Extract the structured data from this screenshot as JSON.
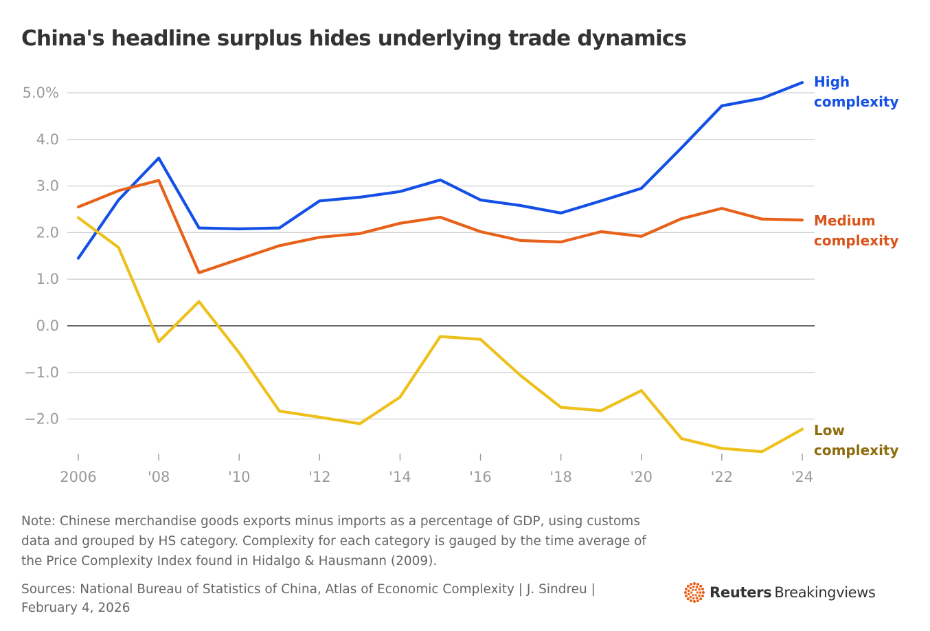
{
  "title": "China's headline surplus hides underlying trade dynamics",
  "chart_data": {
    "type": "line",
    "title": "China's headline surplus hides underlying trade dynamics",
    "x": [
      2006,
      2007,
      2008,
      2009,
      2010,
      2011,
      2012,
      2013,
      2014,
      2015,
      2016,
      2017,
      2018,
      2019,
      2020,
      2021,
      2022,
      2023,
      2024
    ],
    "x_tick_values": [
      2006,
      2008,
      2010,
      2012,
      2014,
      2016,
      2018,
      2020,
      2022,
      2024
    ],
    "x_tick_labels": [
      "2006",
      "'08",
      "'10",
      "'12",
      "'14",
      "'16",
      "'18",
      "'20",
      "'22",
      "'24"
    ],
    "y_tick_values": [
      5,
      4,
      3,
      2,
      1,
      0,
      -1,
      -2
    ],
    "y_tick_labels": [
      "5.0%",
      "4.0",
      "3.0",
      "2.0",
      "1.0",
      "0.0",
      "−1.0",
      "−2.0"
    ],
    "ylim": [
      -2.7,
      5.3
    ],
    "xlim": [
      2006,
      2024
    ],
    "grid": true,
    "zero_line": true,
    "series": [
      {
        "name": "High complexity",
        "label_lines": [
          "High",
          "complexity"
        ],
        "color": "#1450e6",
        "label_color": "#1450e6",
        "values": [
          1.45,
          2.7,
          3.6,
          2.1,
          2.08,
          2.1,
          2.68,
          2.76,
          2.88,
          3.13,
          2.7,
          2.58,
          2.42,
          2.68,
          2.95,
          3.82,
          4.72,
          4.88,
          5.22
        ]
      },
      {
        "name": "Medium complexity",
        "label_lines": [
          "Medium",
          "complexity"
        ],
        "color": "#e8611a",
        "label_color": "#d9541a",
        "values": [
          2.55,
          2.9,
          3.12,
          1.14,
          1.43,
          1.72,
          1.9,
          1.98,
          2.2,
          2.33,
          2.02,
          1.83,
          1.8,
          2.02,
          1.92,
          2.3,
          2.52,
          2.29,
          2.27
        ]
      },
      {
        "name": "Low complexity",
        "label_lines": [
          "Low",
          "complexity"
        ],
        "color": "#eec01c",
        "label_color": "#8c6c0c",
        "values": [
          2.32,
          1.68,
          -0.34,
          0.52,
          -0.58,
          -1.83,
          -1.96,
          -2.1,
          -1.53,
          -0.23,
          -0.29,
          -1.07,
          -1.75,
          -1.82,
          -1.39,
          -2.42,
          -2.63,
          -2.7,
          -2.22
        ]
      }
    ]
  },
  "note": "Note: Chinese merchandise goods exports minus imports as a percentage of GDP, using customs data and grouped by HS category. Complexity for each category is gauged by the time average of the Price Complexity Index found in Hidalgo & Hausmann (2009).",
  "sources": "Sources: National Bureau of Statistics of China, Atlas of Economic Complexity | J. Sindreu | February 4, 2026",
  "brand": {
    "primary": "Reuters",
    "secondary": "Breakingviews",
    "accent": "#e8611a"
  }
}
